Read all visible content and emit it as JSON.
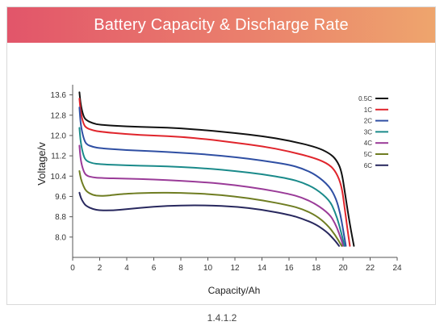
{
  "banner": {
    "title": "Battery Capacity & Discharge Rate"
  },
  "caption": "1.4.1.2",
  "chart_data": {
    "type": "line",
    "title": "Battery Capacity & Discharge Rate",
    "xlabel": "Capacity/Ah",
    "ylabel": "Voltage/v",
    "xlim": [
      0,
      24
    ],
    "ylim": [
      7.2,
      14.0
    ],
    "xticks": [
      0,
      2,
      4,
      6,
      8,
      10,
      12,
      14,
      16,
      18,
      20,
      22,
      24
    ],
    "yticks": [
      8.0,
      8.8,
      9.6,
      10.4,
      11.2,
      12.0,
      12.8,
      13.6
    ],
    "ytick_labels": [
      "8.0",
      "8.8",
      "9.6",
      "10.4",
      "11.2",
      "12.0",
      "12.8",
      "13.6"
    ],
    "grid": false,
    "legend": "top-right",
    "series": [
      {
        "name": "0.5C",
        "color": "#111111",
        "x": [
          0.5,
          0.6,
          0.8,
          1.0,
          1.5,
          2,
          4,
          6,
          8,
          10,
          12,
          14,
          16,
          18,
          19,
          19.5,
          19.9,
          20.2,
          20.5,
          20.8
        ],
        "y": [
          13.7,
          13.2,
          12.75,
          12.6,
          12.48,
          12.42,
          12.35,
          12.33,
          12.28,
          12.2,
          12.1,
          11.98,
          11.8,
          11.55,
          11.3,
          11.05,
          10.6,
          9.5,
          8.5,
          7.65
        ]
      },
      {
        "name": "1C",
        "color": "#e0252c",
        "x": [
          0.5,
          0.6,
          0.8,
          1.0,
          1.5,
          2,
          4,
          6,
          8,
          10,
          12,
          14,
          16,
          18,
          19,
          19.5,
          19.9,
          20.1,
          20.3,
          20.5
        ],
        "y": [
          13.45,
          12.9,
          12.45,
          12.3,
          12.2,
          12.15,
          12.05,
          12.0,
          11.95,
          11.85,
          11.72,
          11.58,
          11.38,
          11.1,
          10.85,
          10.55,
          10.0,
          9.2,
          8.4,
          7.65
        ]
      },
      {
        "name": "2C",
        "color": "#2f4fa3",
        "x": [
          0.5,
          0.6,
          0.8,
          1.0,
          1.5,
          2,
          4,
          6,
          8,
          10,
          12,
          14,
          16,
          17,
          18,
          19,
          19.5,
          19.8,
          20.0,
          20.2
        ],
        "y": [
          13.1,
          12.4,
          11.9,
          11.65,
          11.55,
          11.5,
          11.42,
          11.38,
          11.32,
          11.25,
          11.15,
          11.02,
          10.85,
          10.7,
          10.45,
          10.0,
          9.5,
          8.9,
          8.3,
          7.65
        ]
      },
      {
        "name": "3C",
        "color": "#1a8a8a",
        "x": [
          0.5,
          0.6,
          0.8,
          1.0,
          1.5,
          2,
          4,
          6,
          8,
          10,
          12,
          14,
          16,
          17,
          18,
          19,
          19.4,
          19.7,
          19.9,
          20.1
        ],
        "y": [
          12.3,
          11.7,
          11.2,
          11.0,
          10.9,
          10.87,
          10.82,
          10.8,
          10.76,
          10.7,
          10.6,
          10.48,
          10.3,
          10.15,
          9.9,
          9.45,
          9.0,
          8.5,
          8.1,
          7.65
        ]
      },
      {
        "name": "4C",
        "color": "#9a3b98",
        "x": [
          0.5,
          0.6,
          0.8,
          1.0,
          1.5,
          2,
          4,
          6,
          8,
          10,
          12,
          14,
          16,
          17,
          18,
          19,
          19.4,
          19.7,
          19.9,
          20.0
        ],
        "y": [
          11.6,
          11.0,
          10.6,
          10.42,
          10.35,
          10.33,
          10.3,
          10.27,
          10.22,
          10.15,
          10.05,
          9.9,
          9.7,
          9.55,
          9.3,
          8.9,
          8.55,
          8.15,
          7.85,
          7.65
        ]
      },
      {
        "name": "5C",
        "color": "#6f7d22",
        "x": [
          0.5,
          0.6,
          0.8,
          1.0,
          1.5,
          2,
          2.5,
          3,
          4,
          6,
          8,
          10,
          12,
          14,
          16,
          17,
          18,
          18.8,
          19.4,
          19.9
        ],
        "y": [
          10.6,
          10.3,
          10.0,
          9.8,
          9.65,
          9.62,
          9.63,
          9.66,
          9.71,
          9.75,
          9.74,
          9.7,
          9.6,
          9.45,
          9.25,
          9.1,
          8.85,
          8.5,
          8.1,
          7.65
        ]
      },
      {
        "name": "6C",
        "color": "#28285e",
        "x": [
          0.5,
          0.6,
          0.8,
          1.0,
          1.5,
          2,
          3,
          4,
          6,
          8,
          10,
          12,
          14,
          16,
          17,
          18,
          18.8,
          19.2,
          19.5,
          19.7
        ],
        "y": [
          9.75,
          9.55,
          9.35,
          9.22,
          9.1,
          9.05,
          9.05,
          9.1,
          9.2,
          9.25,
          9.25,
          9.2,
          9.08,
          8.88,
          8.72,
          8.5,
          8.2,
          7.98,
          7.8,
          7.65
        ]
      }
    ]
  }
}
